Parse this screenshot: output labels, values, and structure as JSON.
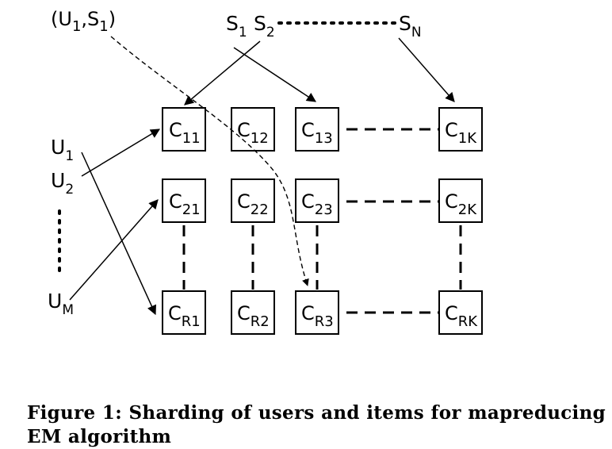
{
  "diagram": {
    "cells": [
      {
        "id": "c11",
        "main": "C",
        "sub": "11"
      },
      {
        "id": "c12",
        "main": "C",
        "sub": "12"
      },
      {
        "id": "c13",
        "main": "C",
        "sub": "13"
      },
      {
        "id": "c1k",
        "main": "C",
        "sub": "1K"
      },
      {
        "id": "c21",
        "main": "C",
        "sub": "21"
      },
      {
        "id": "c22",
        "main": "C",
        "sub": "22"
      },
      {
        "id": "c23",
        "main": "C",
        "sub": "23"
      },
      {
        "id": "c2k",
        "main": "C",
        "sub": "2K"
      },
      {
        "id": "cr1",
        "main": "C",
        "sub": "R1"
      },
      {
        "id": "cr2",
        "main": "C",
        "sub": "R2"
      },
      {
        "id": "cr3",
        "main": "C",
        "sub": "R3"
      },
      {
        "id": "crk",
        "main": "C",
        "sub": "RK"
      }
    ],
    "labels": {
      "pair": {
        "open": "(U",
        "sub1": "1",
        "comma": ",S",
        "sub2": "1",
        "close": ")"
      },
      "s1": {
        "main": "S",
        "sub": "1"
      },
      "s2": {
        "main": "S",
        "sub": "2"
      },
      "sn": {
        "main": "S",
        "sub": "N"
      },
      "u1": {
        "main": "U",
        "sub": "1"
      },
      "u2": {
        "main": "U",
        "sub": "2"
      },
      "um": {
        "main": "U",
        "sub": "M"
      }
    }
  },
  "caption": "Figure 1: Sharding of users and items for mapreducing EM algorithm"
}
